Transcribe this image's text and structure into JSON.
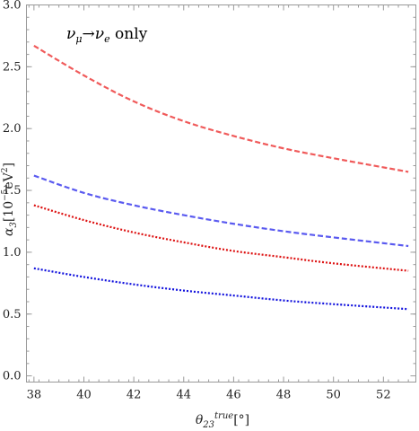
{
  "chart_data": {
    "type": "line",
    "annotation": "νμ→νe only",
    "xlabel": "θ₂₃ᵗʳᵘᵉ[°]",
    "ylabel": "α₃[10⁻⁵eV²]",
    "xlim": [
      37.7,
      53.3
    ],
    "ylim": [
      -0.05,
      3.0
    ],
    "xticks": [
      38,
      40,
      42,
      44,
      46,
      48,
      50,
      52
    ],
    "yticks": [
      0.0,
      0.5,
      1.0,
      1.5,
      2.0,
      2.5,
      3.0
    ],
    "ytick_labels": [
      "0.0",
      "0.5",
      "1.0",
      "1.5",
      "2.0",
      "2.5",
      "3.0"
    ],
    "grid": false,
    "series": [
      {
        "color": "#f05a5a",
        "style": "dashed",
        "x": [
          38,
          40,
          42,
          44,
          46,
          48,
          50,
          53
        ],
        "y": [
          2.67,
          2.43,
          2.22,
          2.06,
          1.94,
          1.84,
          1.76,
          1.65
        ]
      },
      {
        "color": "#5a5af0",
        "style": "dashed",
        "x": [
          38,
          40,
          42,
          44,
          46,
          48,
          50,
          53
        ],
        "y": [
          1.62,
          1.48,
          1.38,
          1.3,
          1.23,
          1.17,
          1.12,
          1.05
        ]
      },
      {
        "color": "#dd1111",
        "style": "dotted",
        "x": [
          38,
          40,
          42,
          44,
          46,
          48,
          50,
          53
        ],
        "y": [
          1.38,
          1.26,
          1.16,
          1.08,
          1.01,
          0.96,
          0.91,
          0.85
        ]
      },
      {
        "color": "#1111dd",
        "style": "dotted",
        "x": [
          38,
          40,
          42,
          44,
          46,
          48,
          50,
          53
        ],
        "y": [
          0.87,
          0.8,
          0.74,
          0.69,
          0.65,
          0.61,
          0.58,
          0.54
        ]
      }
    ]
  }
}
